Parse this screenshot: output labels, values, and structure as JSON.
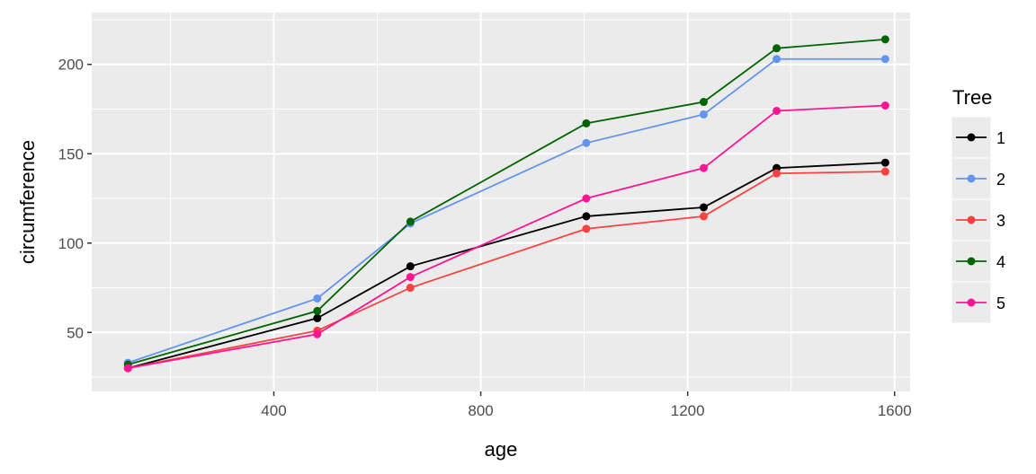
{
  "chart_data": {
    "type": "line",
    "xlabel": "age",
    "ylabel": "circumference",
    "xlim": [
      48,
      1630
    ],
    "ylim": [
      17,
      229
    ],
    "x_ticks": [
      400,
      800,
      1200,
      1600
    ],
    "x_minor_ticks": [
      200,
      600,
      1000,
      1400
    ],
    "y_ticks": [
      50,
      100,
      150,
      200
    ],
    "y_minor_ticks": [
      25,
      75,
      125,
      175,
      225
    ],
    "x_tick_labels": [
      "400",
      "800",
      "1200",
      "1600"
    ],
    "y_tick_labels": [
      "50",
      "100",
      "150",
      "200"
    ],
    "legend": {
      "title": "Tree",
      "position": "right"
    },
    "grid": true,
    "x": [
      118,
      484,
      664,
      1004,
      1231,
      1372,
      1582
    ],
    "series": [
      {
        "name": "1",
        "color": "#000000",
        "values": [
          30,
          58,
          87,
          115,
          120,
          142,
          145
        ]
      },
      {
        "name": "2",
        "color": "#6495ED",
        "values": [
          33,
          69,
          111,
          156,
          172,
          203,
          203
        ]
      },
      {
        "name": "3",
        "color": "#FF4040",
        "values": [
          30,
          51,
          75,
          108,
          115,
          139,
          140
        ]
      },
      {
        "name": "4",
        "color": "#006400",
        "values": [
          32,
          62,
          112,
          167,
          179,
          209,
          214
        ]
      },
      {
        "name": "5",
        "color": "#FF1493",
        "values": [
          30,
          49,
          81,
          125,
          142,
          174,
          177
        ]
      }
    ]
  }
}
